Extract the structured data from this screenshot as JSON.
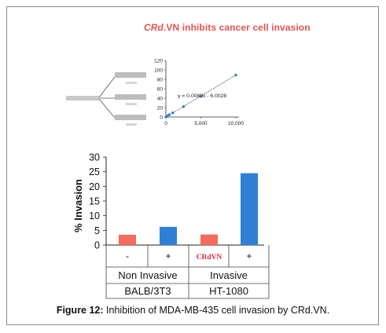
{
  "headline": {
    "italic": "CRd",
    "rest": ".VN inhibits cancer cell invasion"
  },
  "inset": {
    "equation": "y = 0.0089x - 6.0028",
    "y_ticks": [
      "120",
      "100",
      "80",
      "60",
      "40",
      "20",
      "0"
    ],
    "x_ticks": [
      "0",
      "5,000",
      "10,000"
    ],
    "points": [
      [
        0,
        0
      ],
      [
        200,
        2
      ],
      [
        500,
        5
      ],
      [
        1000,
        9
      ],
      [
        2500,
        22
      ],
      [
        5000,
        44
      ],
      [
        10000,
        89
      ]
    ],
    "ylim": [
      0,
      120
    ],
    "xlim": [
      0,
      10000
    ]
  },
  "chart_data": {
    "type": "bar",
    "ylabel": "% Invasion",
    "ylim": [
      0,
      30
    ],
    "yticks": [
      "30",
      "25",
      "20",
      "15",
      "10",
      "5",
      "0"
    ],
    "categories": [
      "-",
      "+",
      "CRdVN",
      "+"
    ],
    "values": [
      3.5,
      6.2,
      3.6,
      24.5
    ],
    "colors": [
      "#f26b5b",
      "#2f7fd4",
      "#f26b5b",
      "#2f7fd4"
    ],
    "group_labels": [
      "Non Invasive",
      "Invasive"
    ],
    "cell_lines": [
      "BALB/3T3",
      "HT-1080"
    ]
  },
  "caption": {
    "label": "Figure 12:",
    "text": " Inhibition of MDA-MB-435 cell invasion by CRd.VN."
  }
}
